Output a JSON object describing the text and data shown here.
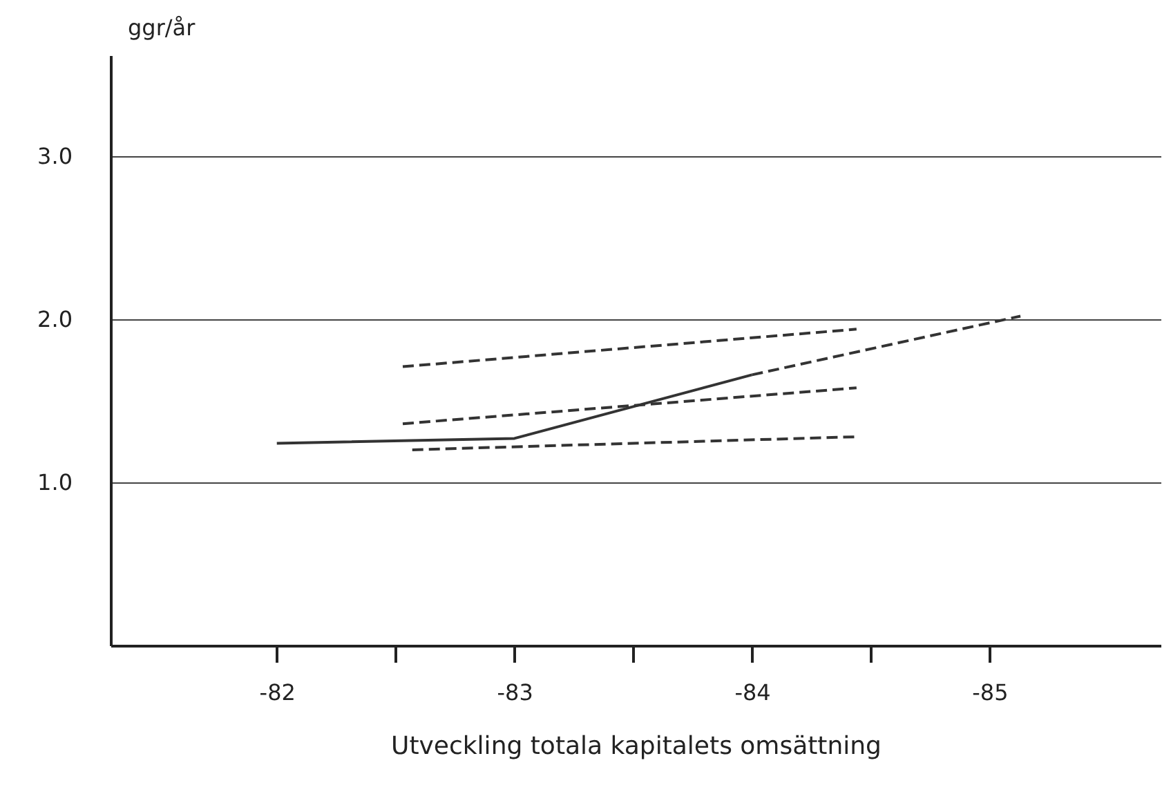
{
  "chart_data": {
    "type": "line",
    "xlabel": "Utveckling totala kapitalets omsättning",
    "ylabel": "ggr/år",
    "xlim": [
      -81.3,
      -85.72
    ],
    "ylim": [
      0,
      3.62
    ],
    "xticks": [
      -82,
      {
        "value": -82.5,
        "label": null
      },
      -83,
      {
        "value": -83.5,
        "label": null
      },
      -84,
      {
        "value": -84.5,
        "label": null
      },
      -85
    ],
    "yticks": [
      {
        "value": 1,
        "label": "1.0"
      },
      {
        "value": 2,
        "label": "2.0"
      },
      {
        "value": 3,
        "label": "3.0"
      }
    ],
    "grid": "y",
    "marker": "none",
    "series": [
      {
        "color": "#333333",
        "line_style": "solid",
        "x": [
          -82,
          -83,
          -84
        ],
        "values": [
          1.24,
          1.27,
          1.66
        ]
      },
      {
        "color": "#333333",
        "line_style": "dashed",
        "x": [
          -84,
          -85.13
        ],
        "values": [
          1.66,
          2.02
        ]
      },
      {
        "color": "#333333",
        "line_style": "dashed",
        "x": [
          -82.53,
          -84.44
        ],
        "values": [
          1.71,
          1.94
        ]
      },
      {
        "color": "#333333",
        "line_style": "dashed",
        "x": [
          -82.53,
          -84.44
        ],
        "values": [
          1.36,
          1.58
        ]
      },
      {
        "color": "#333333",
        "line_style": "dashed",
        "x": [
          -82.57,
          -84.44
        ],
        "values": [
          1.2,
          1.28
        ]
      }
    ]
  }
}
